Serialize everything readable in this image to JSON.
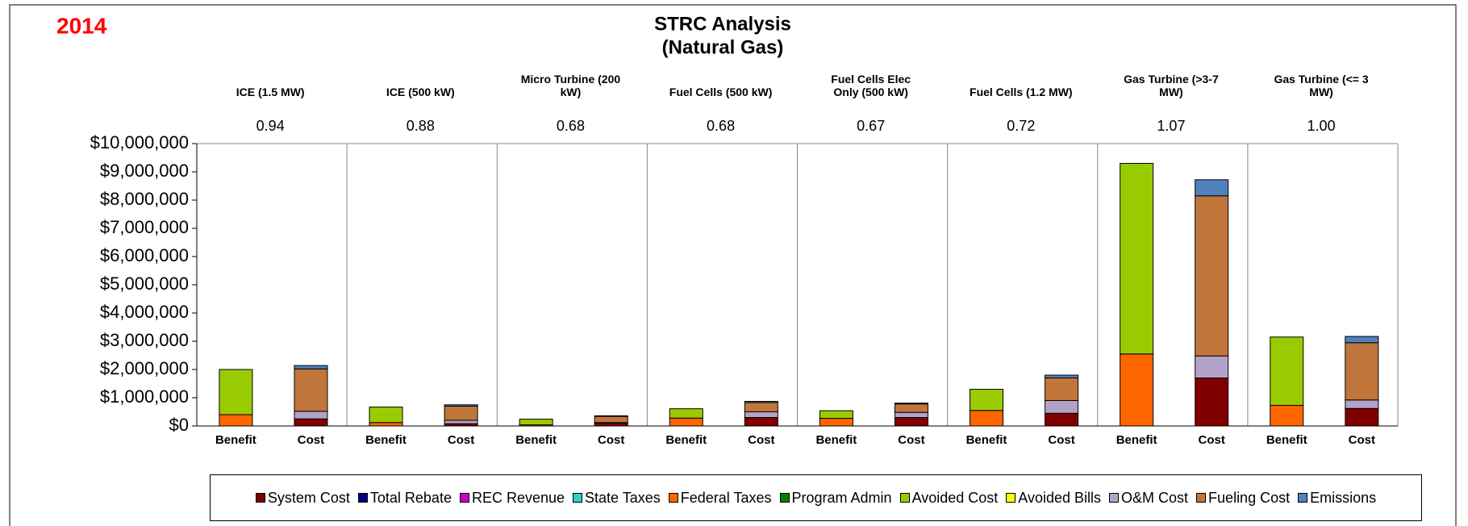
{
  "chart_data": {
    "type": "stacked_bar",
    "title": "STRC Analysis",
    "subtitle": "(Natural Gas)",
    "annotation": "2014",
    "groups": [
      "ICE (1.5 MW)",
      "ICE (500 kW)",
      "Micro Turbine (200 kW)",
      "Fuel Cells (500 kW)",
      "Fuel Cells Elec Only (500 kW)",
      "Fuel Cells (1.2 MW)",
      "Gas Turbine (>3-7 MW)",
      "Gas Turbine (<= 3 MW)"
    ],
    "ratios": [
      {
        "value": 0.94,
        "label": "0.94"
      },
      {
        "value": 0.88,
        "label": "0.88"
      },
      {
        "value": 0.68,
        "label": "0.68"
      },
      {
        "value": 0.68,
        "label": "0.68"
      },
      {
        "value": 0.67,
        "label": "0.67"
      },
      {
        "value": 0.72,
        "label": "0.72"
      },
      {
        "value": 1.07,
        "label": "1.07"
      },
      {
        "value": 1.0,
        "label": "1.00"
      }
    ],
    "categories": [
      "Benefit",
      "Cost",
      "Benefit",
      "Cost",
      "Benefit",
      "Cost",
      "Benefit",
      "Cost",
      "Benefit",
      "Cost",
      "Benefit",
      "Cost",
      "Benefit",
      "Cost",
      "Benefit",
      "Cost"
    ],
    "series": [
      {
        "name": "System Cost",
        "color": "#800000",
        "values": [
          0,
          250000,
          0,
          80000,
          0,
          100000,
          0,
          300000,
          0,
          300000,
          0,
          450000,
          0,
          1700000,
          0,
          620000
        ]
      },
      {
        "name": "Total Rebate",
        "color": "#000080",
        "values": [
          0,
          0,
          0,
          0,
          0,
          0,
          0,
          0,
          0,
          0,
          0,
          0,
          0,
          0,
          0,
          0
        ]
      },
      {
        "name": "REC Revenue",
        "color": "#cc00cc",
        "values": [
          0,
          0,
          0,
          0,
          0,
          0,
          0,
          0,
          0,
          0,
          0,
          0,
          0,
          0,
          0,
          0
        ]
      },
      {
        "name": "State Taxes",
        "color": "#33cccc",
        "values": [
          0,
          0,
          0,
          0,
          0,
          0,
          0,
          0,
          0,
          0,
          0,
          0,
          0,
          0,
          0,
          0
        ]
      },
      {
        "name": "Federal Taxes",
        "color": "#ff6600",
        "values": [
          400000,
          0,
          120000,
          0,
          40000,
          0,
          280000,
          0,
          270000,
          0,
          550000,
          0,
          2550000,
          0,
          730000,
          0
        ]
      },
      {
        "name": "Program Admin",
        "color": "#008000",
        "values": [
          0,
          0,
          0,
          0,
          0,
          0,
          0,
          0,
          0,
          0,
          0,
          0,
          0,
          0,
          0,
          0
        ]
      },
      {
        "name": "Avoided Cost",
        "color": "#99cc00",
        "values": [
          1600000,
          0,
          550000,
          0,
          200000,
          0,
          330000,
          0,
          270000,
          0,
          750000,
          0,
          6750000,
          0,
          2420000,
          0
        ]
      },
      {
        "name": "Avoided Bills",
        "color": "#ffff00",
        "values": [
          0,
          0,
          0,
          0,
          0,
          0,
          0,
          0,
          0,
          0,
          0,
          0,
          0,
          0,
          0,
          0
        ]
      },
      {
        "name": "O&M Cost",
        "color": "#b3a2c7",
        "values": [
          0,
          270000,
          0,
          120000,
          0,
          20000,
          0,
          200000,
          0,
          180000,
          0,
          450000,
          0,
          780000,
          0,
          300000
        ]
      },
      {
        "name": "Fueling Cost",
        "color": "#c0763a",
        "values": [
          0,
          1500000,
          0,
          500000,
          0,
          220000,
          0,
          330000,
          0,
          300000,
          0,
          800000,
          0,
          5670000,
          0,
          2030000
        ]
      },
      {
        "name": "Emissions",
        "color": "#4f81bd",
        "values": [
          0,
          120000,
          0,
          50000,
          0,
          20000,
          0,
          40000,
          0,
          30000,
          0,
          100000,
          0,
          570000,
          0,
          220000
        ]
      }
    ],
    "ylim": [
      0,
      10000000
    ],
    "yticks": [
      {
        "value": 0,
        "label": "$0"
      },
      {
        "value": 1000000,
        "label": "$1,000,000"
      },
      {
        "value": 2000000,
        "label": "$2,000,000"
      },
      {
        "value": 3000000,
        "label": "$3,000,000"
      },
      {
        "value": 4000000,
        "label": "$4,000,000"
      },
      {
        "value": 5000000,
        "label": "$5,000,000"
      },
      {
        "value": 6000000,
        "label": "$6,000,000"
      },
      {
        "value": 7000000,
        "label": "$7,000,000"
      },
      {
        "value": 8000000,
        "label": "$8,000,000"
      },
      {
        "value": 9000000,
        "label": "$9,000,000"
      },
      {
        "value": 10000000,
        "label": "$10,000,000"
      }
    ],
    "legend": "bottom"
  }
}
